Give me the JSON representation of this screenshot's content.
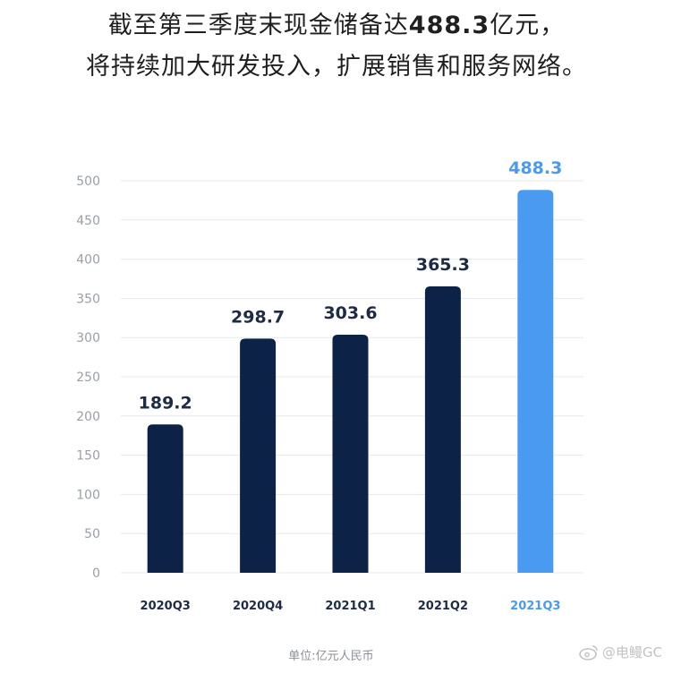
{
  "title": {
    "line1_before": "截至第三季度末现金储备达",
    "line1_highlight": "488.3",
    "line1_after": "亿元，",
    "line2": "将持续加大研发投入，扩展销售和服务网络。"
  },
  "unit_note": "单位:亿元人民币",
  "watermark": "@电鳗GC",
  "colors": {
    "bar": "#0c2246",
    "highlight_bar": "#4a9af2",
    "grid": "#e6e8ec",
    "tick": "#9aa0a8",
    "label": "#1e2b45"
  },
  "chart_data": {
    "type": "bar",
    "categories": [
      "2020Q3",
      "2020Q4",
      "2021Q1",
      "2021Q2",
      "2021Q3"
    ],
    "values": [
      189.2,
      298.7,
      303.6,
      365.3,
      488.3
    ],
    "value_labels": [
      "189.2",
      "298.7",
      "303.6",
      "365.3",
      "488.3"
    ],
    "highlight_index": 4,
    "yticks": [
      "0",
      "50",
      "100",
      "150",
      "200",
      "250",
      "300",
      "350",
      "400",
      "450",
      "500"
    ],
    "ylim": [
      0,
      500
    ],
    "grid": true
  }
}
